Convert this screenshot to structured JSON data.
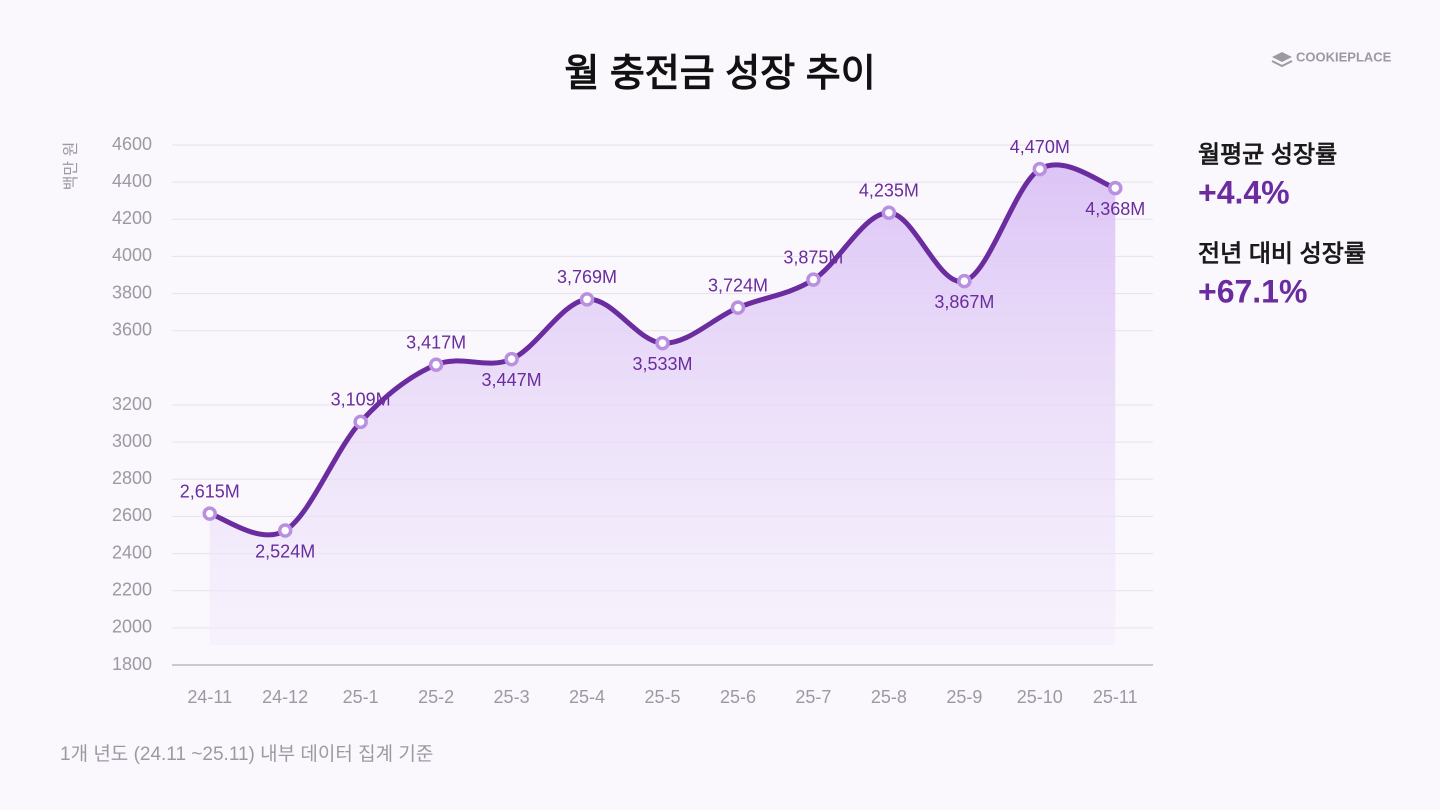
{
  "chart_data": {
    "type": "line",
    "title": "월 충전금 성장 추이",
    "y_label": "백만 원",
    "categories": [
      "24-11",
      "24-12",
      "25-1",
      "25-2",
      "25-3",
      "25-4",
      "25-5",
      "25-6",
      "25-7",
      "25-8",
      "25-9",
      "25-10",
      "25-11"
    ],
    "series": [
      {
        "name": "월 충전금",
        "color": "#6a2c9e",
        "values": [
          2615,
          2524,
          3109,
          3417,
          3447,
          3769,
          3533,
          3724,
          3875,
          4235,
          3867,
          4470,
          4368
        ],
        "value_labels": [
          "2,615M",
          "2,524M",
          "3,109M",
          "3,417M",
          "3,447M",
          "3,769M",
          "3,533M",
          "3,724M",
          "3,875M",
          "4,235M",
          "3,867M",
          "4,470M",
          "4,368M"
        ]
      }
    ],
    "ylim": [
      1800,
      4600
    ],
    "yticks": [
      1800,
      2000,
      2200,
      2400,
      2600,
      2800,
      3000,
      3200,
      3600,
      3800,
      4000,
      4200,
      4400,
      4600
    ],
    "grid": true
  },
  "brand": "COOKIEPLACE",
  "stats": [
    {
      "label": "월평균 성장률",
      "value": "+4.4%"
    },
    {
      "label": "전년 대비 성장률",
      "value": "+67.1%"
    }
  ],
  "footnote": "1개 년도 (24.11 ~25.11) 내부 데이터 집계 기준"
}
